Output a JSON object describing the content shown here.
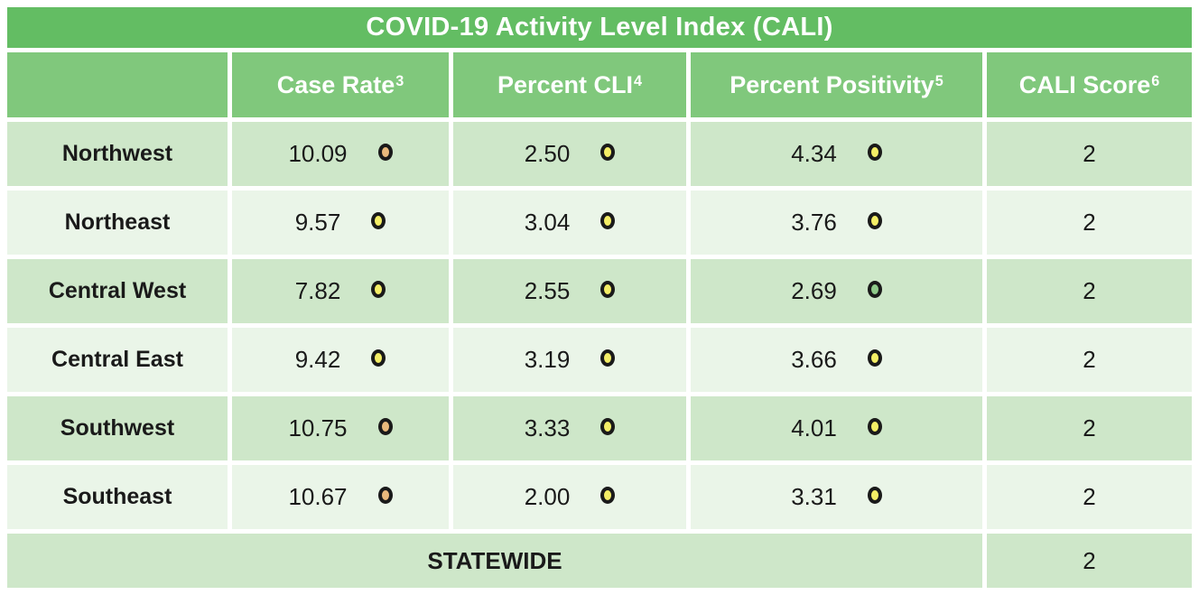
{
  "chart_data": {
    "type": "table",
    "title": "COVID-19 Activity Level Index (CALI)",
    "columns": [
      {
        "label": "Case Rate",
        "sup": "3"
      },
      {
        "label": "Percent CLI",
        "sup": "4"
      },
      {
        "label": "Percent Positivity",
        "sup": "5"
      },
      {
        "label": "CALI Score",
        "sup": "6"
      }
    ],
    "rows": [
      {
        "region": "Northwest",
        "case_rate": {
          "value": "10.09",
          "status": "orange"
        },
        "percent_cli": {
          "value": "2.50",
          "status": "yellow"
        },
        "percent_positivity": {
          "value": "4.34",
          "status": "yellow"
        },
        "cali_score": "2"
      },
      {
        "region": "Northeast",
        "case_rate": {
          "value": "9.57",
          "status": "yellow"
        },
        "percent_cli": {
          "value": "3.04",
          "status": "yellow"
        },
        "percent_positivity": {
          "value": "3.76",
          "status": "yellow"
        },
        "cali_score": "2"
      },
      {
        "region": "Central West",
        "case_rate": {
          "value": "7.82",
          "status": "yellow"
        },
        "percent_cli": {
          "value": "2.55",
          "status": "yellow"
        },
        "percent_positivity": {
          "value": "2.69",
          "status": "green"
        },
        "cali_score": "2"
      },
      {
        "region": "Central East",
        "case_rate": {
          "value": "9.42",
          "status": "yellow"
        },
        "percent_cli": {
          "value": "3.19",
          "status": "yellow"
        },
        "percent_positivity": {
          "value": "3.66",
          "status": "yellow"
        },
        "cali_score": "2"
      },
      {
        "region": "Southwest",
        "case_rate": {
          "value": "10.75",
          "status": "orange"
        },
        "percent_cli": {
          "value": "3.33",
          "status": "yellow"
        },
        "percent_positivity": {
          "value": "4.01",
          "status": "yellow"
        },
        "cali_score": "2"
      },
      {
        "region": "Southeast",
        "case_rate": {
          "value": "10.67",
          "status": "orange"
        },
        "percent_cli": {
          "value": "2.00",
          "status": "yellow"
        },
        "percent_positivity": {
          "value": "3.31",
          "status": "yellow"
        },
        "cali_score": "2"
      }
    ],
    "statewide": {
      "label": "STATEWIDE",
      "cali_score": "2"
    },
    "status_colors": {
      "orange": "#e9b97c",
      "yellow": "#f4ee66",
      "green": "#8fc98a"
    }
  },
  "theme": {
    "title_bg": "#63bd63",
    "header_bg": "#80c87c",
    "row_dark_bg": "#cee7c9",
    "row_light_bg": "#eaf5e8",
    "header_text": "#ffffff",
    "body_text": "#1a1a1a",
    "grid_gap": "#ffffff"
  }
}
